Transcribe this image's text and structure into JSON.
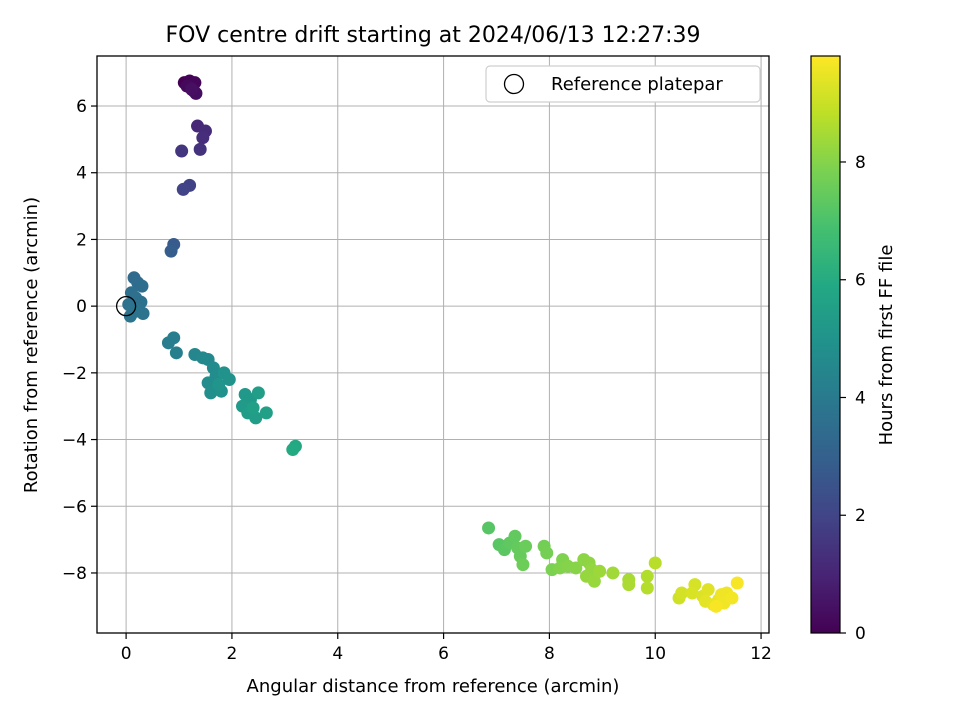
{
  "chart_data": {
    "type": "scatter",
    "title": "FOV centre drift starting at 2024/06/13 12:27:39",
    "xlabel": "Angular distance from reference (arcmin)",
    "ylabel": "Rotation from reference (arcmin)",
    "xlim": [
      -0.55,
      12.15
    ],
    "ylim": [
      -9.8,
      7.5
    ],
    "xticks": [
      0,
      2,
      4,
      6,
      8,
      10,
      12
    ],
    "yticks": [
      -8,
      -6,
      -4,
      -2,
      0,
      2,
      4,
      6
    ],
    "grid": true,
    "legend": {
      "placement": "top-right",
      "entries": [
        "Reference platepar"
      ]
    },
    "reference_point": {
      "x": 0,
      "y": 0
    },
    "colorbar": {
      "label": "Hours from first FF file",
      "colormap": "viridis",
      "range": [
        0,
        9.8
      ],
      "ticks": [
        0,
        2,
        4,
        6,
        8
      ]
    },
    "points": [
      {
        "x": 1.1,
        "y": 6.7,
        "t": 0.0
      },
      {
        "x": 1.2,
        "y": 6.75,
        "t": 0.05
      },
      {
        "x": 1.25,
        "y": 6.65,
        "t": 0.1
      },
      {
        "x": 1.3,
        "y": 6.7,
        "t": 0.15
      },
      {
        "x": 1.15,
        "y": 6.6,
        "t": 0.2
      },
      {
        "x": 1.22,
        "y": 6.55,
        "t": 0.25
      },
      {
        "x": 1.28,
        "y": 6.45,
        "t": 0.3
      },
      {
        "x": 1.32,
        "y": 6.38,
        "t": 0.35
      },
      {
        "x": 1.24,
        "y": 6.5,
        "t": 0.4
      },
      {
        "x": 1.35,
        "y": 5.4,
        "t": 1.1
      },
      {
        "x": 1.5,
        "y": 5.25,
        "t": 1.2
      },
      {
        "x": 1.45,
        "y": 5.05,
        "t": 1.3
      },
      {
        "x": 1.4,
        "y": 4.7,
        "t": 1.4
      },
      {
        "x": 1.05,
        "y": 4.65,
        "t": 1.5
      },
      {
        "x": 1.2,
        "y": 3.62,
        "t": 1.9
      },
      {
        "x": 1.08,
        "y": 3.5,
        "t": 2.0
      },
      {
        "x": 0.9,
        "y": 1.85,
        "t": 2.8
      },
      {
        "x": 0.85,
        "y": 1.65,
        "t": 2.9
      },
      {
        "x": 0.15,
        "y": 0.85,
        "t": 3.4
      },
      {
        "x": 0.22,
        "y": 0.7,
        "t": 3.45
      },
      {
        "x": 0.3,
        "y": 0.6,
        "t": 3.5
      },
      {
        "x": 0.1,
        "y": 0.4,
        "t": 3.55
      },
      {
        "x": 0.18,
        "y": 0.25,
        "t": 3.6
      },
      {
        "x": 0.28,
        "y": 0.12,
        "t": 3.62
      },
      {
        "x": 0.05,
        "y": 0.05,
        "t": 3.65
      },
      {
        "x": 0.12,
        "y": -0.05,
        "t": 3.68
      },
      {
        "x": 0.22,
        "y": -0.1,
        "t": 3.7
      },
      {
        "x": 0.32,
        "y": -0.22,
        "t": 3.72
      },
      {
        "x": 0.08,
        "y": -0.3,
        "t": 3.75
      },
      {
        "x": 0.2,
        "y": -0.15,
        "t": 3.78
      },
      {
        "x": 0.9,
        "y": -0.95,
        "t": 4.1
      },
      {
        "x": 0.8,
        "y": -1.1,
        "t": 4.15
      },
      {
        "x": 0.95,
        "y": -1.4,
        "t": 4.2
      },
      {
        "x": 1.3,
        "y": -1.45,
        "t": 4.5
      },
      {
        "x": 1.45,
        "y": -1.55,
        "t": 4.55
      },
      {
        "x": 1.55,
        "y": -1.6,
        "t": 4.6
      },
      {
        "x": 1.65,
        "y": -1.85,
        "t": 4.65
      },
      {
        "x": 1.7,
        "y": -2.1,
        "t": 4.7
      },
      {
        "x": 1.55,
        "y": -2.3,
        "t": 4.75
      },
      {
        "x": 1.65,
        "y": -2.45,
        "t": 4.8
      },
      {
        "x": 1.6,
        "y": -2.6,
        "t": 4.85
      },
      {
        "x": 1.8,
        "y": -2.55,
        "t": 4.9
      },
      {
        "x": 1.85,
        "y": -2.0,
        "t": 4.95
      },
      {
        "x": 1.95,
        "y": -2.2,
        "t": 5.0
      },
      {
        "x": 1.75,
        "y": -2.35,
        "t": 5.05
      },
      {
        "x": 2.25,
        "y": -2.65,
        "t": 5.2
      },
      {
        "x": 2.35,
        "y": -2.8,
        "t": 5.25
      },
      {
        "x": 2.2,
        "y": -3.0,
        "t": 5.3
      },
      {
        "x": 2.3,
        "y": -3.2,
        "t": 5.35
      },
      {
        "x": 2.45,
        "y": -3.35,
        "t": 5.4
      },
      {
        "x": 2.5,
        "y": -2.6,
        "t": 5.45
      },
      {
        "x": 2.65,
        "y": -3.2,
        "t": 5.5
      },
      {
        "x": 2.4,
        "y": -3.05,
        "t": 5.55
      },
      {
        "x": 3.2,
        "y": -4.2,
        "t": 5.9
      },
      {
        "x": 3.15,
        "y": -4.3,
        "t": 5.95
      },
      {
        "x": 6.85,
        "y": -6.65,
        "t": 7.2
      },
      {
        "x": 7.05,
        "y": -7.15,
        "t": 7.25
      },
      {
        "x": 7.15,
        "y": -7.3,
        "t": 7.3
      },
      {
        "x": 7.25,
        "y": -7.1,
        "t": 7.35
      },
      {
        "x": 7.35,
        "y": -6.9,
        "t": 7.4
      },
      {
        "x": 7.4,
        "y": -7.25,
        "t": 7.45
      },
      {
        "x": 7.45,
        "y": -7.5,
        "t": 7.5
      },
      {
        "x": 7.55,
        "y": -7.2,
        "t": 7.55
      },
      {
        "x": 7.5,
        "y": -7.75,
        "t": 7.6
      },
      {
        "x": 7.9,
        "y": -7.2,
        "t": 7.7
      },
      {
        "x": 7.95,
        "y": -7.4,
        "t": 7.75
      },
      {
        "x": 8.05,
        "y": -7.9,
        "t": 7.85
      },
      {
        "x": 8.25,
        "y": -7.6,
        "t": 7.9
      },
      {
        "x": 8.2,
        "y": -7.85,
        "t": 7.95
      },
      {
        "x": 8.35,
        "y": -7.8,
        "t": 8.0
      },
      {
        "x": 8.5,
        "y": -7.85,
        "t": 8.05
      },
      {
        "x": 8.65,
        "y": -7.6,
        "t": 8.1
      },
      {
        "x": 8.75,
        "y": -7.7,
        "t": 8.15
      },
      {
        "x": 8.8,
        "y": -7.9,
        "t": 8.2
      },
      {
        "x": 8.7,
        "y": -8.1,
        "t": 8.25
      },
      {
        "x": 8.85,
        "y": -8.25,
        "t": 8.3
      },
      {
        "x": 8.95,
        "y": -7.95,
        "t": 8.35
      },
      {
        "x": 9.2,
        "y": -8.0,
        "t": 8.4
      },
      {
        "x": 9.5,
        "y": -8.2,
        "t": 8.5
      },
      {
        "x": 9.5,
        "y": -8.35,
        "t": 8.55
      },
      {
        "x": 9.85,
        "y": -8.1,
        "t": 8.65
      },
      {
        "x": 9.85,
        "y": -8.45,
        "t": 8.7
      },
      {
        "x": 10.0,
        "y": -7.7,
        "t": 8.75
      },
      {
        "x": 10.45,
        "y": -8.75,
        "t": 9.1
      },
      {
        "x": 10.5,
        "y": -8.6,
        "t": 9.15
      },
      {
        "x": 10.75,
        "y": -8.35,
        "t": 9.2
      },
      {
        "x": 10.7,
        "y": -8.6,
        "t": 9.25
      },
      {
        "x": 10.9,
        "y": -8.7,
        "t": 9.3
      },
      {
        "x": 11.0,
        "y": -8.5,
        "t": 9.35
      },
      {
        "x": 10.95,
        "y": -8.85,
        "t": 9.4
      },
      {
        "x": 11.1,
        "y": -8.95,
        "t": 9.45
      },
      {
        "x": 11.2,
        "y": -8.8,
        "t": 9.5
      },
      {
        "x": 11.25,
        "y": -8.65,
        "t": 9.55
      },
      {
        "x": 11.35,
        "y": -8.6,
        "t": 9.6
      },
      {
        "x": 11.3,
        "y": -8.9,
        "t": 9.62
      },
      {
        "x": 11.45,
        "y": -8.75,
        "t": 9.65
      },
      {
        "x": 11.55,
        "y": -8.3,
        "t": 9.7
      },
      {
        "x": 11.15,
        "y": -9.0,
        "t": 9.72
      }
    ]
  }
}
